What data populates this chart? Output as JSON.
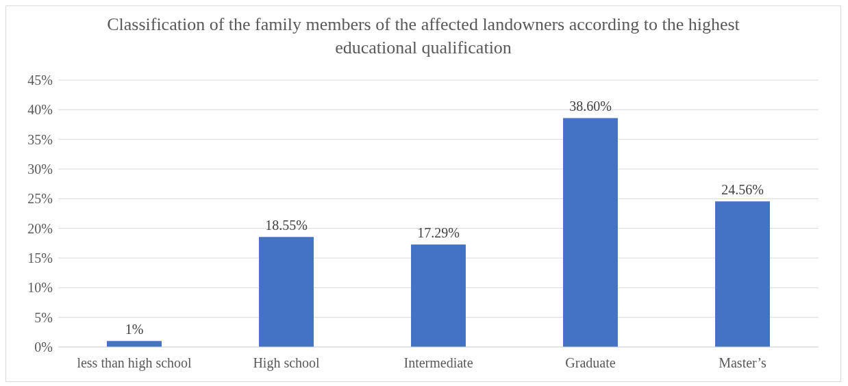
{
  "chart_data": {
    "type": "bar",
    "title": "Classification of the family members of the affected landowners according to the highest educational qualification",
    "categories": [
      "less than high school",
      "High school",
      "Intermediate",
      "Graduate",
      "Master’s"
    ],
    "values": [
      1,
      18.55,
      17.29,
      38.6,
      24.56
    ],
    "value_labels": [
      "1%",
      "18.55%",
      "17.29%",
      "38.60%",
      "24.56%"
    ],
    "color": "#4472c4",
    "ylim": [
      0,
      45
    ],
    "yticks": [
      {
        "value": 0,
        "label": "0%"
      },
      {
        "value": 5,
        "label": "5%"
      },
      {
        "value": 10,
        "label": "10%"
      },
      {
        "value": 15,
        "label": "15%"
      },
      {
        "value": 20,
        "label": "20%"
      },
      {
        "value": 25,
        "label": "25%"
      },
      {
        "value": 30,
        "label": "30%"
      },
      {
        "value": 35,
        "label": "35%"
      },
      {
        "value": 40,
        "label": "40%"
      },
      {
        "value": 45,
        "label": "45%"
      }
    ],
    "grid": "y"
  }
}
